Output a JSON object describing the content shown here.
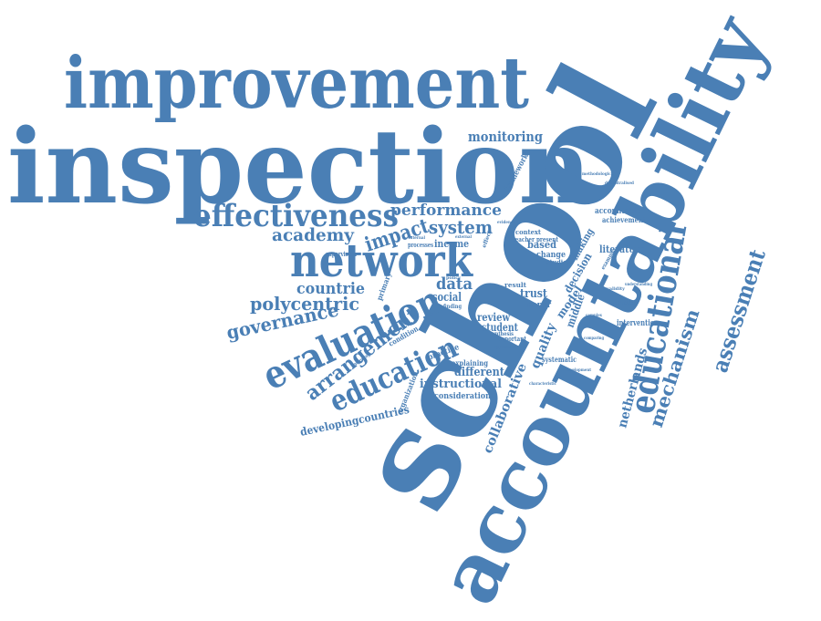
{
  "accent_color": "#4a7fb5",
  "words": [
    {
      "key": "school",
      "text": "school"
    },
    {
      "key": "inspection",
      "text": "inspection"
    },
    {
      "key": "improvement",
      "text": "improvement"
    },
    {
      "key": "accountability",
      "text": "accountability"
    },
    {
      "key": "educational",
      "text": "educational"
    },
    {
      "key": "effectiveness",
      "text": "effectiveness"
    },
    {
      "key": "network",
      "text": "network"
    },
    {
      "key": "evaluation",
      "text": "evaluation"
    },
    {
      "key": "education",
      "text": "education"
    },
    {
      "key": "assessment",
      "text": "assessment"
    },
    {
      "key": "mechanism",
      "text": "mechanism"
    },
    {
      "key": "arrangement",
      "text": "arrangement"
    },
    {
      "key": "polycentric",
      "text": "polycentric"
    },
    {
      "key": "governance",
      "text": "governance"
    },
    {
      "key": "academy",
      "text": "academy"
    },
    {
      "key": "performance",
      "text": "performance"
    },
    {
      "key": "system",
      "text": "system"
    },
    {
      "key": "impact",
      "text": "impact"
    },
    {
      "key": "countrie",
      "text": "countrie"
    },
    {
      "key": "data",
      "text": "data"
    },
    {
      "key": "monitoring",
      "text": "monitoring"
    },
    {
      "key": "collaborative",
      "text": "collaborative"
    },
    {
      "key": "quality",
      "text": "quality"
    },
    {
      "key": "netherlands",
      "text": "netherlands"
    },
    {
      "key": "developingcountries",
      "text": "developingcountries"
    },
    {
      "key": "different",
      "text": "different"
    },
    {
      "key": "instructional",
      "text": "instructional"
    },
    {
      "key": "consideration",
      "text": "consideration"
    },
    {
      "key": "social",
      "text": "social"
    },
    {
      "key": "review",
      "text": "review"
    },
    {
      "key": "student",
      "text": "student"
    },
    {
      "key": "trust",
      "text": "trust"
    },
    {
      "key": "model",
      "text": "model"
    },
    {
      "key": "middle",
      "text": "middle"
    },
    {
      "key": "decision",
      "text": "decision"
    },
    {
      "key": "making",
      "text": "making"
    },
    {
      "key": "literature",
      "text": "literature"
    },
    {
      "key": "based",
      "text": "based"
    },
    {
      "key": "change",
      "text": "change"
    },
    {
      "key": "income",
      "text": "income"
    },
    {
      "key": "framework",
      "text": "framework"
    },
    {
      "key": "accountable",
      "text": "accountable"
    },
    {
      "key": "achievement",
      "text": "achievement"
    },
    {
      "key": "intervention",
      "text": "intervention"
    },
    {
      "key": "systematic",
      "text": "systematic"
    },
    {
      "key": "explaining",
      "text": "explaining"
    },
    {
      "key": "practice",
      "text": "practice"
    },
    {
      "key": "condition",
      "text": "condition"
    },
    {
      "key": "organization",
      "text": "organization"
    },
    {
      "key": "primary",
      "text": "primary"
    },
    {
      "key": "context",
      "text": "context"
    },
    {
      "key": "teacher_present",
      "text": "teacher present"
    },
    {
      "key": "studies",
      "text": "studies"
    },
    {
      "key": "paper",
      "text": "paper"
    },
    {
      "key": "result",
      "text": "result"
    },
    {
      "key": "important",
      "text": "important"
    },
    {
      "key": "synthesis",
      "text": "synthesis"
    },
    {
      "key": "processes",
      "text": "processes"
    },
    {
      "key": "supervision",
      "text": "supervision"
    },
    {
      "key": "finding",
      "text": "finding"
    },
    {
      "key": "instruction",
      "text": "instruction"
    },
    {
      "key": "example",
      "text": "example"
    },
    {
      "key": "validity",
      "text": "validity"
    },
    {
      "key": "methodological",
      "text": "methodological"
    },
    {
      "key": "decentralised",
      "text": "decentralised"
    },
    {
      "key": "improving",
      "text": "improving"
    },
    {
      "key": "development",
      "text": "development"
    },
    {
      "key": "characteristic",
      "text": "characteristic"
    },
    {
      "key": "understanding",
      "text": "understanding"
    },
    {
      "key": "policy",
      "text": "policy"
    },
    {
      "key": "effect",
      "text": "effect"
    },
    {
      "key": "internal",
      "text": "internal"
    },
    {
      "key": "external",
      "text": "external"
    },
    {
      "key": "evidence",
      "text": "evidence"
    },
    {
      "key": "approaches",
      "text": "approaches"
    },
    {
      "key": "complex",
      "text": "complex"
    },
    {
      "key": "comparing",
      "text": "comparing"
    }
  ]
}
